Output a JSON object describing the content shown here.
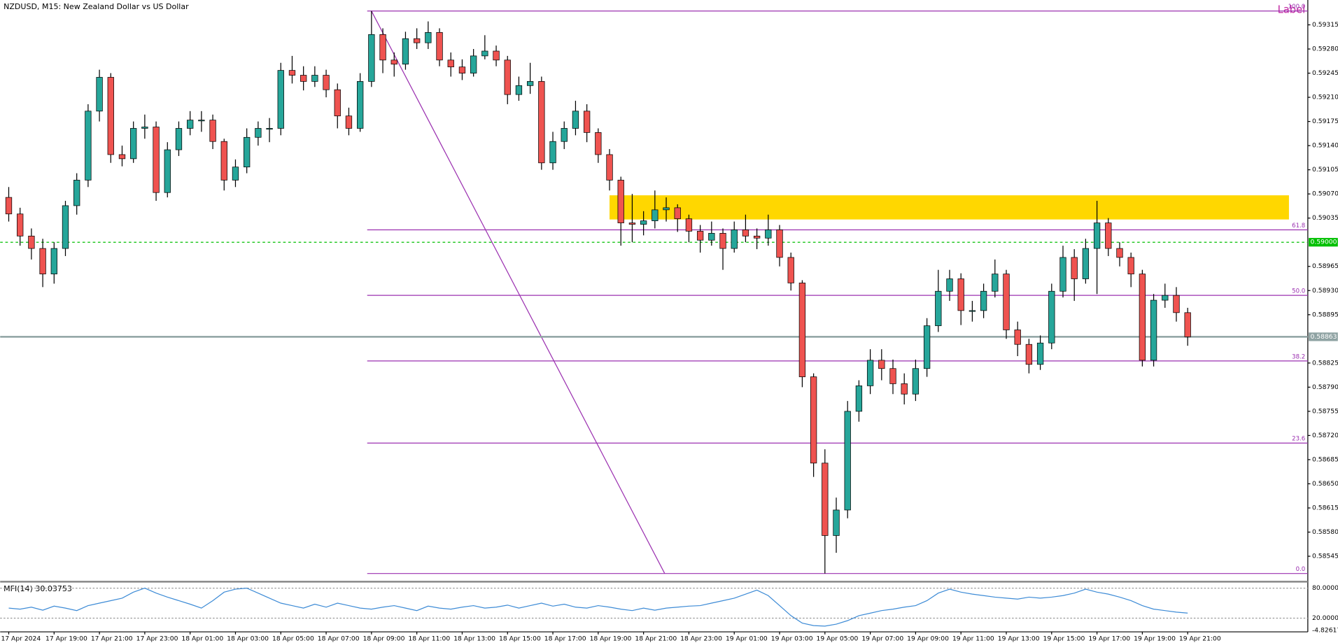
{
  "chart_data": [
    {
      "type": "candlestick",
      "title": "NZDUSD, M15:  New Zealand Dollar vs US Dollar",
      "annotation": "Label",
      "up_color": "#26a69a",
      "down_color": "#ef5350",
      "ylim": [
        0.5851,
        0.59351
      ],
      "yticks": [
        0.59315,
        {
          "value": 0.5928,
          "label": "0.59280"
        },
        0.59245,
        {
          "value": 0.5921,
          "label": "0.59210"
        },
        0.59175,
        {
          "value": 0.5914,
          "label": "0.59140"
        },
        0.59105,
        {
          "value": 0.5907,
          "label": "0.59070"
        },
        0.59035,
        0.58965,
        {
          "value": 0.5893,
          "label": "0.58930"
        },
        0.58895,
        0.58825,
        {
          "value": 0.5879,
          "label": "0.58790"
        },
        0.58755,
        {
          "value": 0.5872,
          "label": "0.58720"
        },
        0.58685,
        {
          "value": 0.5865,
          "label": "0.58650"
        },
        0.58615,
        {
          "value": 0.5858,
          "label": "0.58580"
        },
        0.58545
      ],
      "grid": false,
      "categories": [
        "17 Apr 2024",
        null,
        null,
        null,
        "17 Apr 19:00",
        null,
        null,
        null,
        "17 Apr 21:00",
        null,
        null,
        null,
        "17 Apr 23:00",
        null,
        null,
        null,
        "18 Apr 01:00",
        null,
        null,
        null,
        "18 Apr 03:00",
        null,
        null,
        null,
        "18 Apr 05:00",
        null,
        null,
        null,
        "18 Apr 07:00",
        null,
        null,
        null,
        "18 Apr 09:00",
        null,
        null,
        null,
        "18 Apr 11:00",
        null,
        null,
        null,
        "18 Apr 13:00",
        null,
        null,
        null,
        "18 Apr 15:00",
        null,
        null,
        null,
        "18 Apr 17:00",
        null,
        null,
        null,
        "18 Apr 19:00",
        null,
        null,
        null,
        "18 Apr 21:00",
        null,
        null,
        null,
        "18 Apr 23:00",
        null,
        null,
        null,
        "19 Apr 01:00",
        null,
        null,
        null,
        "19 Apr 03:00",
        null,
        null,
        null,
        "19 Apr 05:00",
        null,
        null,
        null,
        "19 Apr 07:00",
        null,
        null,
        null,
        "19 Apr 09:00",
        null,
        null,
        null,
        "19 Apr 11:00",
        null,
        null,
        null,
        "19 Apr 13:00",
        null,
        null,
        null,
        "19 Apr 15:00",
        null,
        null,
        null,
        "19 Apr 17:00",
        null,
        null,
        null,
        "19 Apr 19:00",
        null,
        null,
        null,
        "19 Apr 21:00"
      ],
      "ohlc": [
        [
          0.59065,
          0.5908,
          0.5903,
          0.59041
        ],
        [
          0.59041,
          0.5905,
          0.58995,
          0.59009
        ],
        [
          0.59009,
          0.5902,
          0.58975,
          0.58991
        ],
        [
          0.58991,
          0.59005,
          0.58935,
          0.58954
        ],
        [
          0.58954,
          0.59,
          0.5894,
          0.58991
        ],
        [
          0.58991,
          0.5906,
          0.5898,
          0.59053
        ],
        [
          0.59053,
          0.591,
          0.5904,
          0.5909
        ],
        [
          0.5909,
          0.592,
          0.5908,
          0.5919
        ],
        [
          0.5919,
          0.5925,
          0.59175,
          0.59239
        ],
        [
          0.59239,
          0.59245,
          0.59115,
          0.59127
        ],
        [
          0.59127,
          0.5914,
          0.5911,
          0.59121
        ],
        [
          0.59121,
          0.59175,
          0.59115,
          0.59165
        ],
        [
          0.59165,
          0.59185,
          0.5915,
          0.59167
        ],
        [
          0.59167,
          0.59175,
          0.5906,
          0.59072
        ],
        [
          0.59072,
          0.59145,
          0.59065,
          0.59134
        ],
        [
          0.59134,
          0.59175,
          0.59125,
          0.59165
        ],
        [
          0.59165,
          0.5919,
          0.59155,
          0.59177
        ],
        [
          0.59177,
          0.5919,
          0.5916,
          0.59177
        ],
        [
          0.59177,
          0.59185,
          0.59135,
          0.59146
        ],
        [
          0.59146,
          0.5915,
          0.59075,
          0.5909
        ],
        [
          0.5909,
          0.5912,
          0.5908,
          0.59109
        ],
        [
          0.59109,
          0.59165,
          0.591,
          0.59152
        ],
        [
          0.59152,
          0.59175,
          0.5914,
          0.59165
        ],
        [
          0.59165,
          0.5918,
          0.59145,
          0.59165
        ],
        [
          0.59165,
          0.5926,
          0.59155,
          0.59249
        ],
        [
          0.59249,
          0.5927,
          0.5923,
          0.59242
        ],
        [
          0.59242,
          0.59255,
          0.5922,
          0.59233
        ],
        [
          0.59233,
          0.59255,
          0.59225,
          0.59242
        ],
        [
          0.59242,
          0.5925,
          0.5921,
          0.59221
        ],
        [
          0.59221,
          0.5923,
          0.59165,
          0.59183
        ],
        [
          0.59183,
          0.59195,
          0.59155,
          0.59165
        ],
        [
          0.59165,
          0.59245,
          0.5916,
          0.59233
        ],
        [
          0.59233,
          0.59335,
          0.59225,
          0.59301
        ],
        [
          0.59301,
          0.5931,
          0.59245,
          0.59264
        ],
        [
          0.59264,
          0.59275,
          0.5924,
          0.59258
        ],
        [
          0.59258,
          0.59305,
          0.5925,
          0.59295
        ],
        [
          0.59295,
          0.5931,
          0.5928,
          0.59289
        ],
        [
          0.59289,
          0.5932,
          0.5928,
          0.59304
        ],
        [
          0.59304,
          0.5931,
          0.59255,
          0.59264
        ],
        [
          0.59264,
          0.59275,
          0.5924,
          0.59254
        ],
        [
          0.59254,
          0.59265,
          0.59235,
          0.59245
        ],
        [
          0.59245,
          0.5928,
          0.5924,
          0.5927
        ],
        [
          0.5927,
          0.593,
          0.59265,
          0.59277
        ],
        [
          0.59277,
          0.59285,
          0.59255,
          0.59264
        ],
        [
          0.59264,
          0.5927,
          0.592,
          0.59214
        ],
        [
          0.59214,
          0.5924,
          0.59205,
          0.59227
        ],
        [
          0.59227,
          0.5926,
          0.59215,
          0.59233
        ],
        [
          0.59233,
          0.5924,
          0.59105,
          0.59115
        ],
        [
          0.59115,
          0.5916,
          0.59105,
          0.59146
        ],
        [
          0.59146,
          0.59175,
          0.59135,
          0.59165
        ],
        [
          0.59165,
          0.59205,
          0.59155,
          0.5919
        ],
        [
          0.5919,
          0.592,
          0.59145,
          0.59159
        ],
        [
          0.59159,
          0.59165,
          0.59115,
          0.59127
        ],
        [
          0.59127,
          0.59135,
          0.59075,
          0.5909
        ],
        [
          0.5909,
          0.59095,
          0.58995,
          0.59028
        ],
        [
          0.59028,
          0.5907,
          0.59,
          0.59026
        ],
        [
          0.59026,
          0.59045,
          0.5901,
          0.59031
        ],
        [
          0.59031,
          0.59075,
          0.5902,
          0.59047
        ],
        [
          0.59047,
          0.59065,
          0.5903,
          0.5905
        ],
        [
          0.5905,
          0.59055,
          0.59015,
          0.59034
        ],
        [
          0.59034,
          0.5904,
          0.59,
          0.59016
        ],
        [
          0.59016,
          0.59025,
          0.58985,
          0.59003
        ],
        [
          0.59003,
          0.5903,
          0.58995,
          0.59013
        ],
        [
          0.59013,
          0.5902,
          0.5896,
          0.58991
        ],
        [
          0.58991,
          0.5903,
          0.58985,
          0.59018
        ],
        [
          0.59018,
          0.5904,
          0.59,
          0.59009
        ],
        [
          0.59009,
          0.5902,
          0.5899,
          0.59006
        ],
        [
          0.59006,
          0.5904,
          0.58995,
          0.59018
        ],
        [
          0.59018,
          0.59025,
          0.58965,
          0.58978
        ],
        [
          0.58978,
          0.58985,
          0.5893,
          0.58941
        ],
        [
          0.58941,
          0.58945,
          0.5879,
          0.58805
        ],
        [
          0.58805,
          0.5881,
          0.5866,
          0.5868
        ],
        [
          0.5868,
          0.587,
          0.5852,
          0.58575
        ],
        [
          0.58575,
          0.5863,
          0.5855,
          0.58612
        ],
        [
          0.58612,
          0.5877,
          0.586,
          0.58755
        ],
        [
          0.58755,
          0.588,
          0.5874,
          0.58792
        ],
        [
          0.58792,
          0.58845,
          0.5878,
          0.58829
        ],
        [
          0.58829,
          0.58845,
          0.588,
          0.58817
        ],
        [
          0.58817,
          0.5883,
          0.5878,
          0.58795
        ],
        [
          0.58795,
          0.5881,
          0.58765,
          0.5878
        ],
        [
          0.5878,
          0.5883,
          0.5877,
          0.58817
        ],
        [
          0.58817,
          0.5889,
          0.58805,
          0.58879
        ],
        [
          0.58879,
          0.5896,
          0.5887,
          0.58929
        ],
        [
          0.58929,
          0.5896,
          0.58915,
          0.58947
        ],
        [
          0.58947,
          0.58955,
          0.5888,
          0.58901
        ],
        [
          0.58901,
          0.58915,
          0.58885,
          0.58901
        ],
        [
          0.58901,
          0.5894,
          0.5889,
          0.58929
        ],
        [
          0.58929,
          0.58975,
          0.5892,
          0.58954
        ],
        [
          0.58954,
          0.5896,
          0.5886,
          0.58873
        ],
        [
          0.58873,
          0.58885,
          0.58835,
          0.58852
        ],
        [
          0.58852,
          0.5886,
          0.5881,
          0.58823
        ],
        [
          0.58823,
          0.58865,
          0.58815,
          0.58854
        ],
        [
          0.58854,
          0.5894,
          0.58845,
          0.58929
        ],
        [
          0.58929,
          0.58995,
          0.5892,
          0.58978
        ],
        [
          0.58978,
          0.5899,
          0.58915,
          0.58947
        ],
        [
          0.58947,
          0.59005,
          0.5894,
          0.58991
        ],
        [
          0.58991,
          0.5906,
          0.58925,
          0.59028
        ],
        [
          0.59028,
          0.59035,
          0.5898,
          0.58991
        ],
        [
          0.58991,
          0.59,
          0.58965,
          0.58978
        ],
        [
          0.58978,
          0.58985,
          0.58935,
          0.58954
        ],
        [
          0.58954,
          0.5896,
          0.5882,
          0.58829
        ],
        [
          0.58829,
          0.58925,
          0.5882,
          0.58916
        ],
        [
          0.58916,
          0.5894,
          0.58905,
          0.58923
        ],
        [
          0.58923,
          0.58935,
          0.58885,
          0.58898
        ],
        [
          0.58898,
          0.58905,
          0.5885,
          0.58863
        ]
      ],
      "zone": {
        "low": 0.59033,
        "high": 0.59068,
        "color": "#ffd700"
      },
      "fibonacci": {
        "color": "#9b30b0",
        "levels": [
          {
            "value": 0.59335,
            "label": "100.0"
          },
          {
            "value": 0.59018,
            "label": "61.8"
          },
          {
            "value": 0.58923,
            "label": "50.0"
          },
          {
            "value": 0.58828,
            "label": "38.2"
          },
          {
            "value": 0.58709,
            "label": "23.6"
          },
          {
            "value": 0.5852,
            "label": "0.0"
          }
        ]
      },
      "price_lines": [
        {
          "value": 0.59,
          "label": "0.59000",
          "color": "#00c000",
          "style": "dashed"
        },
        {
          "value": 0.58863,
          "label": "0.58863",
          "color": "#8fa3a3",
          "style": "solid"
        }
      ]
    },
    {
      "type": "line",
      "title": "MFI(14) 30.03753",
      "color": "#3d8bd6",
      "ylim": [
        -7.43,
        88.57
      ],
      "yticks": [
        {
          "value": 80,
          "label": "80.00000"
        },
        {
          "value": 20,
          "label": "20.00000"
        },
        -4.82617
      ],
      "values": [
        40,
        38,
        42,
        36,
        44,
        40,
        35,
        45,
        50,
        55,
        60,
        72,
        80,
        70,
        62,
        55,
        48,
        40,
        55,
        72,
        78,
        80,
        70,
        60,
        50,
        45,
        40,
        48,
        42,
        50,
        45,
        40,
        38,
        42,
        45,
        40,
        35,
        44,
        40,
        38,
        42,
        45,
        40,
        42,
        46,
        40,
        45,
        50,
        44,
        48,
        42,
        40,
        45,
        42,
        38,
        35,
        40,
        36,
        40,
        42,
        44,
        45,
        50,
        55,
        60,
        68,
        76,
        65,
        45,
        25,
        10,
        5,
        4,
        8,
        15,
        25,
        30,
        35,
        38,
        42,
        45,
        55,
        70,
        78,
        72,
        68,
        65,
        62,
        60,
        58,
        62,
        60,
        62,
        65,
        70,
        78,
        72,
        68,
        62,
        55,
        45,
        38,
        35,
        32,
        30.03753
      ]
    }
  ]
}
